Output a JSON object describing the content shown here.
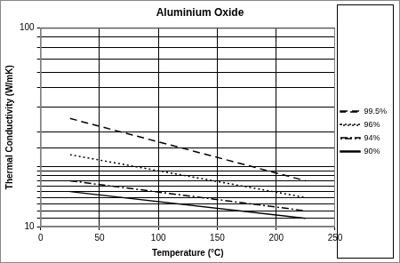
{
  "chart_data": {
    "type": "line",
    "title": "Aluminium Oxide",
    "x_label": "Temperature (°C)",
    "y_label": "Thermal Conductivity (W/mK)",
    "x": [
      25,
      225
    ],
    "series": [
      {
        "name": "99.5%",
        "color": "#000000",
        "line_style": "dashed",
        "values": [
          35,
          17
        ]
      },
      {
        "name": "96%",
        "color": "#000000",
        "line_style": "dotted",
        "values": [
          23,
          14
        ]
      },
      {
        "name": "94%",
        "color": "#000000",
        "line_style": "dashdot",
        "values": [
          17,
          12
        ]
      },
      {
        "name": "90%",
        "color": "#000000",
        "line_style": "solid",
        "values": [
          15,
          11
        ]
      }
    ],
    "xlim": [
      0,
      250
    ],
    "xticks": [
      0,
      50,
      100,
      150,
      200,
      250
    ],
    "ylim": [
      10,
      100
    ],
    "yticks": [
      10,
      100
    ],
    "log": "y",
    "grid": true,
    "legend": "right"
  }
}
